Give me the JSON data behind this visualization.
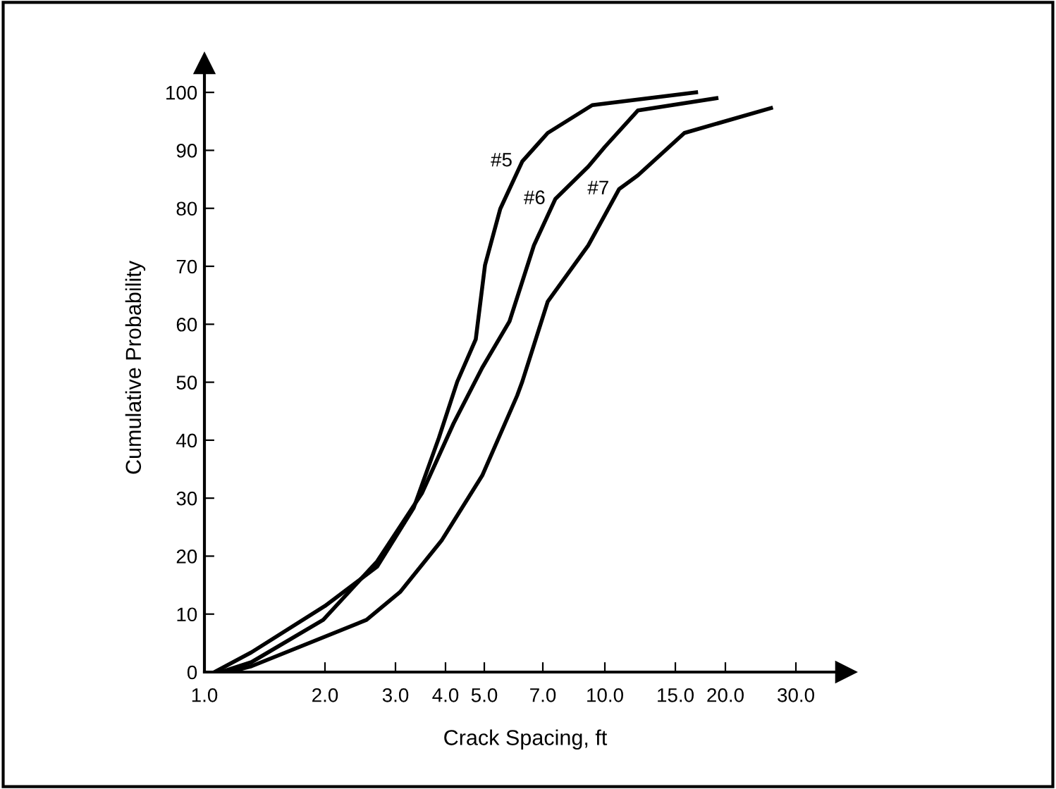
{
  "chart_data": {
    "type": "line",
    "xlabel": "Crack Spacing, ft",
    "ylabel": "Cumulative Probability",
    "log": "x",
    "xlim": [
      1.0,
      40
    ],
    "ylim": [
      0,
      105
    ],
    "xticks": [
      {
        "value": 1,
        "label": "1.0"
      },
      {
        "value": 2,
        "label": "2.0"
      },
      {
        "value": 3,
        "label": "3.0"
      },
      {
        "value": 4,
        "label": "4.0"
      },
      {
        "value": 5,
        "label": "5.0"
      },
      {
        "value": 7,
        "label": "7.0"
      },
      {
        "value": 10,
        "label": "10.0"
      },
      {
        "value": 15,
        "label": "15.0"
      },
      {
        "value": 20,
        "label": "20.0"
      },
      {
        "value": 30,
        "label": "30.0"
      }
    ],
    "yticks": [
      0,
      10,
      20,
      30,
      40,
      50,
      60,
      70,
      80,
      90,
      100
    ],
    "grid": false,
    "legend": false,
    "marker": "none",
    "line_style": "solid",
    "series": [
      {
        "name": "#5",
        "color": "#000000",
        "x": [
          1.06,
          1.31,
          2.0,
          2.7,
          3.33,
          3.85,
          4.28,
          4.76,
          5.02,
          5.48,
          6.22,
          7.2,
          9.3,
          16.9
        ],
        "values": [
          0,
          3.4,
          11.4,
          18.2,
          28.3,
          40.4,
          50.1,
          57.4,
          70.2,
          79.9,
          88.1,
          93.0,
          97.8,
          100
        ]
      },
      {
        "name": "#6",
        "color": "#000000",
        "x": [
          1.1,
          1.31,
          1.98,
          2.7,
          3.49,
          4.19,
          4.94,
          5.78,
          6.65,
          7.52,
          9.09,
          10.0,
          12.1,
          19.0
        ],
        "values": [
          0,
          1.7,
          9.0,
          19.1,
          30.8,
          42.9,
          52.5,
          60.5,
          73.6,
          81.6,
          87.2,
          90.6,
          96.9,
          99.0
        ]
      },
      {
        "name": "#7",
        "color": "#000000",
        "x": [
          1.15,
          1.31,
          2.54,
          3.08,
          3.92,
          4.94,
          6.04,
          6.22,
          7.2,
          9.09,
          10.85,
          12.1,
          15.8,
          26.0
        ],
        "values": [
          0,
          1,
          9.0,
          13.8,
          22.8,
          33.9,
          47.7,
          50.1,
          63.9,
          73.6,
          83.3,
          85.7,
          93.0,
          97.3
        ]
      }
    ]
  }
}
